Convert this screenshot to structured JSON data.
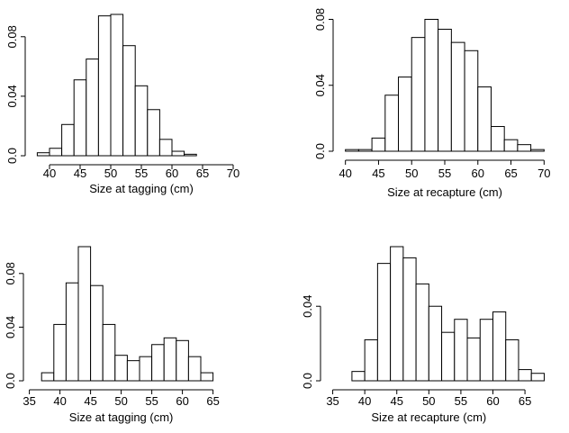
{
  "chart_data": [
    {
      "type": "bar",
      "subtype": "histogram",
      "xlabel": "Size at tagging (cm)",
      "ylabel": "",
      "xlim": [
        37.5,
        72.5
      ],
      "ylim": [
        0,
        0.095
      ],
      "x_ticks": [
        40,
        45,
        50,
        55,
        60,
        65,
        70
      ],
      "y_ticks": [
        0.0,
        0.04,
        0.08
      ],
      "y_tick_labels": [
        "0.0",
        "0.04",
        "0.08"
      ],
      "bin_width": 2,
      "bin_start": 38,
      "values": [
        0.002,
        0.005,
        0.021,
        0.051,
        0.065,
        0.094,
        0.095,
        0.074,
        0.047,
        0.031,
        0.011,
        0.003,
        0.001
      ]
    },
    {
      "type": "bar",
      "subtype": "histogram",
      "xlabel": "Size at recapture (cm)",
      "ylabel": "",
      "xlim": [
        39.5,
        70.5
      ],
      "ylim": [
        0,
        0.083
      ],
      "x_ticks": [
        40,
        45,
        50,
        55,
        60,
        65,
        70
      ],
      "y_ticks": [
        0.0,
        0.04,
        0.08
      ],
      "y_tick_labels": [
        "0.0",
        "0.04",
        "0.08"
      ],
      "bin_width": 2,
      "bin_start": 40,
      "values": [
        0.001,
        0.001,
        0.008,
        0.034,
        0.045,
        0.069,
        0.08,
        0.074,
        0.066,
        0.061,
        0.039,
        0.015,
        0.007,
        0.004,
        0.001
      ]
    },
    {
      "type": "bar",
      "subtype": "histogram",
      "xlabel": "Size at tagging (cm)",
      "ylabel": "",
      "xlim": [
        35.5,
        65.5
      ],
      "ylim": [
        0,
        0.1
      ],
      "x_ticks": [
        35,
        40,
        45,
        50,
        55,
        60,
        65
      ],
      "y_ticks": [
        0.0,
        0.04,
        0.08
      ],
      "y_tick_labels": [
        "0.0",
        "0.04",
        "0.08"
      ],
      "bin_width": 2,
      "bin_start": 37,
      "values": [
        0.006,
        0.042,
        0.073,
        0.1,
        0.071,
        0.042,
        0.019,
        0.015,
        0.018,
        0.027,
        0.032,
        0.03,
        0.018,
        0.006
      ]
    },
    {
      "type": "bar",
      "subtype": "histogram",
      "xlabel": "Size at recapture (cm)",
      "ylabel": "",
      "xlim": [
        34.5,
        68.5
      ],
      "ylim": [
        0,
        0.072
      ],
      "x_ticks": [
        35,
        40,
        45,
        50,
        55,
        60,
        65
      ],
      "y_ticks": [
        0.0,
        0.04
      ],
      "y_tick_labels": [
        "0.0",
        "0.04"
      ],
      "bin_width": 2,
      "bin_start": 38,
      "values": [
        0.005,
        0.022,
        0.063,
        0.072,
        0.066,
        0.052,
        0.04,
        0.026,
        0.033,
        0.023,
        0.033,
        0.037,
        0.022,
        0.006,
        0.004
      ]
    }
  ]
}
